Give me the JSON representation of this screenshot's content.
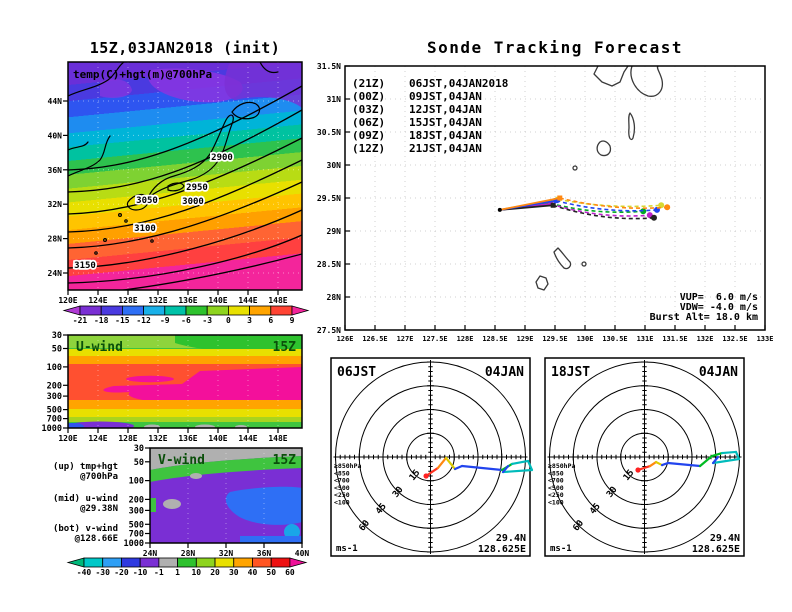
{
  "panels": {
    "map700": {
      "title": "15Z,03JAN2018 (init)",
      "field_label": "temp(C)+hgt(m)@700hPa",
      "y_ticks": [
        "44N",
        "40N",
        "36N",
        "32N",
        "28N",
        "24N"
      ],
      "x_ticks": [
        "120E",
        "124E",
        "128E",
        "132E",
        "136E",
        "140E",
        "144E",
        "148E"
      ],
      "contour_labels": [
        "2900",
        "2950",
        "3000",
        "3050",
        "3100",
        "3150"
      ],
      "colorbar_labels": [
        "-21",
        "-18",
        "-15",
        "-12",
        "-9",
        "-6",
        "-3",
        "0",
        "3",
        "6",
        "9"
      ],
      "colorbar_colors": [
        "#b03ad4",
        "#7a2fd4",
        "#4a3ae0",
        "#2e6ff5",
        "#19b0e8",
        "#00c2a8",
        "#2ec22e",
        "#8ed41e",
        "#e8e000",
        "#ffa400",
        "#ff4433",
        "#f3259b"
      ]
    },
    "uwind": {
      "label": "U-wind",
      "time": "15Z",
      "y_ticks": [
        "30",
        "50",
        "100",
        "200",
        "300",
        "500",
        "700",
        "1000"
      ],
      "x_ticks": [
        "120E",
        "124E",
        "128E",
        "132E",
        "136E",
        "140E",
        "144E",
        "148E"
      ]
    },
    "vwind": {
      "label": "V-wind",
      "time": "15Z",
      "y_ticks": [
        "30",
        "50",
        "100",
        "200",
        "300",
        "500",
        "700",
        "1000"
      ],
      "x_ticks": [
        "24N",
        "28N",
        "32N",
        "36N",
        "40N"
      ]
    },
    "annotation": {
      "up1": "(up) tmp+hgt",
      "up2": "@700hPa",
      "mid1": "(mid) u-wind",
      "mid2": "@29.38N",
      "bot1": "(bot) v-wind",
      "bot2": "@128.66E"
    },
    "wind_colorbar": {
      "labels": [
        "-40",
        "-30",
        "-20",
        "-10",
        "-1",
        "1",
        "10",
        "20",
        "30",
        "40",
        "50",
        "60"
      ],
      "colors": [
        "#00b87a",
        "#00c8c8",
        "#2e9ff5",
        "#2e3ae0",
        "#7a2fd4",
        "#b0b0b0",
        "#2ec22e",
        "#8ed41e",
        "#e8e000",
        "#ffa400",
        "#ff5522",
        "#ee1111",
        "#ee1199"
      ]
    },
    "tracking": {
      "title": "Sonde Tracking Forecast",
      "y_ticks": [
        "31.5N",
        "31N",
        "30.5N",
        "30N",
        "29.5N",
        "29N",
        "28.5N",
        "28N",
        "27.5N"
      ],
      "x_ticks": [
        "126E",
        "126.5E",
        "127E",
        "127.5E",
        "128E",
        "128.5E",
        "129E",
        "129.5E",
        "130E",
        "130.5E",
        "131E",
        "131.5E",
        "132E",
        "132.5E",
        "133E"
      ],
      "legend": [
        {
          "utc": "(21Z)",
          "jst": "06JST,04JAN2018",
          "color": "#222222"
        },
        {
          "utc": "(00Z)",
          "jst": "09JST,04JAN",
          "color": "#bb22cc"
        },
        {
          "utc": "(03Z)",
          "jst": "12JST,04JAN",
          "color": "#2244ee"
        },
        {
          "utc": "(06Z)",
          "jst": "15JST,04JAN",
          "color": "#00aa22"
        },
        {
          "utc": "(09Z)",
          "jst": "18JST,04JAN",
          "color": "#d8d832"
        },
        {
          "utc": "(12Z)",
          "jst": "21JST,04JAN",
          "color": "#ff8811"
        }
      ],
      "vup": "VUP=  6.0 m/s",
      "vdw": "VDW= -4.0 m/s",
      "burst": "Burst Alt= 18.0 km"
    },
    "hodographs": [
      {
        "time_label": "06JST",
        "date_label": "04JAN",
        "unit": "ms-1",
        "lat": "29.4N",
        "lon": "128.625E",
        "ring_labels": [
          "15",
          "30",
          "45",
          "60"
        ],
        "legend": [
          {
            "label": "≥850hPa",
            "color": "#ff2222"
          },
          {
            "label": "<850",
            "color": "#ff8811"
          },
          {
            "label": "<700",
            "color": "#ddcc00"
          },
          {
            "label": "<500",
            "color": "#00bb22"
          },
          {
            "label": "<250",
            "color": "#00bbbb"
          },
          {
            "label": "<100",
            "color": "#2244ee"
          }
        ]
      },
      {
        "time_label": "18JST",
        "date_label": "04JAN",
        "unit": "ms-1",
        "lat": "29.4N",
        "lon": "128.625E",
        "ring_labels": [
          "15",
          "30",
          "45",
          "60"
        ],
        "legend": [
          {
            "label": "≥850hPa",
            "color": "#ff2222"
          },
          {
            "label": "<850",
            "color": "#ff8811"
          },
          {
            "label": "<700",
            "color": "#ddcc00"
          },
          {
            "label": "<500",
            "color": "#00bb22"
          },
          {
            "label": "<250",
            "color": "#00bbbb"
          },
          {
            "label": "<100",
            "color": "#2244ee"
          }
        ]
      }
    ]
  },
  "chart_data": [
    {
      "type": "heatmap",
      "panel": "temp-height-700hPa",
      "title": "15Z,03JAN2018 (init)",
      "field": "temp(C)+hgt(m)@700hPa",
      "x_ticks": [
        "120E",
        "124E",
        "128E",
        "132E",
        "136E",
        "140E",
        "144E",
        "148E"
      ],
      "y_ticks": [
        "44N",
        "40N",
        "36N",
        "32N",
        "28N",
        "24N"
      ],
      "temp_scale_c": [
        -21,
        -18,
        -15,
        -12,
        -9,
        -6,
        -3,
        0,
        3,
        6,
        9
      ],
      "height_contours_m": [
        2900,
        2950,
        3000,
        3050,
        3100,
        3150
      ],
      "pattern": "cold purple/blue air over 40-46N grading through cyan/green/yellow/orange to warm red/pink south of 26N; height contours slope from 3150 at southwest up to 2900 northeast"
    },
    {
      "type": "heatmap",
      "panel": "u-wind-section",
      "time": "15Z",
      "x_ticks": [
        "120E",
        "124E",
        "128E",
        "132E",
        "136E",
        "140E",
        "144E",
        "148E"
      ],
      "pressure_levels_hpa": [
        30,
        50,
        100,
        200,
        300,
        500,
        700,
        1000
      ],
      "wind_scale_ms": [
        -40,
        -30,
        -20,
        -10,
        -1,
        1,
        10,
        20,
        30,
        40,
        50,
        60
      ],
      "pattern": "green 1-10 m/s aloft, westerly jet >50 m/s (magenta) near 150-300 hPa strongest east of 132E, yellow/orange 20-40 m/s mid-levels, weak purple/blue easterlies near surface west end"
    },
    {
      "type": "heatmap",
      "panel": "v-wind-section",
      "time": "15Z",
      "x_ticks": [
        "24N",
        "28N",
        "32N",
        "36N",
        "40N"
      ],
      "pressure_levels_hpa": [
        30,
        50,
        100,
        200,
        300,
        500,
        700,
        1000
      ],
      "wind_scale_ms": [
        -40,
        -30,
        -20,
        -10,
        -1,
        1,
        10,
        20,
        30,
        40,
        50,
        60
      ],
      "pattern": "gray near-zero band at top, green 1-10 m/s near 50-100 hPa, purple -10..-1 m/s northerly over most of section with blue -20..-10 patches north of 34N"
    },
    {
      "type": "line",
      "panel": "sonde-tracking",
      "title": "Sonde Tracking Forecast",
      "x_range_deg_e": [
        126,
        133
      ],
      "y_range_deg_n": [
        27.5,
        31.5
      ],
      "vup_ms": 6.0,
      "vdw_ms": -4.0,
      "burst_alt_km": 18.0,
      "series": [
        {
          "name": "(21Z) 06JST,04JAN2018",
          "color": "#222222",
          "launch": [
            128.58,
            29.32
          ],
          "burst": [
            129.47,
            29.39
          ],
          "landing": [
            131.15,
            29.2
          ]
        },
        {
          "name": "(00Z) 09JST,04JAN",
          "color": "#bb22cc",
          "launch": [
            128.58,
            29.32
          ],
          "burst": [
            129.43,
            29.41
          ],
          "landing": [
            131.08,
            29.24
          ]
        },
        {
          "name": "(03Z) 12JST,04JAN",
          "color": "#2244ee",
          "launch": [
            128.58,
            29.32
          ],
          "burst": [
            129.52,
            29.46
          ],
          "landing": [
            131.2,
            29.32
          ]
        },
        {
          "name": "(06Z) 15JST,04JAN",
          "color": "#00aa22",
          "launch": [
            128.58,
            29.32
          ],
          "burst": [
            129.42,
            29.42
          ],
          "landing": [
            130.97,
            29.3
          ]
        },
        {
          "name": "(09Z) 18JST,04JAN",
          "color": "#d8d832",
          "launch": [
            128.58,
            29.32
          ],
          "burst": [
            129.55,
            29.48
          ],
          "landing": [
            131.27,
            29.39
          ]
        },
        {
          "name": "(12Z) 21JST,04JAN",
          "color": "#ff8811",
          "launch": [
            128.58,
            29.32
          ],
          "burst": [
            129.58,
            29.5
          ],
          "landing": [
            131.37,
            29.36
          ]
        }
      ]
    },
    {
      "type": "line",
      "panel": "hodograph-06JST-04JAN",
      "location": [
        29.4,
        128.625
      ],
      "rings_ms": [
        15,
        30,
        45,
        60
      ],
      "unit": "ms-1",
      "trace_uv_ms": [
        [
          -2.8,
          -12.0
        ],
        [
          4.7,
          -6.9
        ],
        [
          9.8,
          -0.6
        ],
        [
          15.5,
          -7.6
        ],
        [
          19.9,
          -5.7
        ],
        [
          45.2,
          -8.2
        ],
        [
          51.5,
          -4.4
        ],
        [
          61.6,
          -2.5
        ],
        [
          64.1,
          -8.2
        ],
        [
          45.8,
          -9.5
        ],
        [
          49.0,
          -5.7
        ]
      ],
      "segment_colors": [
        "#ff3322",
        "#ff8811",
        "#ddcc00",
        "#2244ee",
        "#2244ee",
        "#00bb22",
        "#00bbbb",
        "#00bbbb",
        "#00bbbb",
        "#2244ee"
      ]
    },
    {
      "type": "line",
      "panel": "hodograph-18JST-04JAN",
      "location": [
        29.4,
        128.625
      ],
      "rings_ms": [
        15,
        30,
        45,
        60
      ],
      "unit": "ms-1",
      "trace_uv_ms": [
        [
          -4.1,
          -8.2
        ],
        [
          3.5,
          -5.7
        ],
        [
          7.3,
          -3.2
        ],
        [
          11.1,
          -5.1
        ],
        [
          14.8,
          -3.8
        ],
        [
          35.1,
          -5.7
        ],
        [
          42.6,
          0.6
        ],
        [
          49.0,
          2.5
        ],
        [
          57.8,
          3.2
        ],
        [
          59.7,
          -1.3
        ],
        [
          43.3,
          -3.8
        ],
        [
          46.4,
          0.0
        ]
      ],
      "segment_colors": [
        "#ff3322",
        "#ff8811",
        "#ddcc00",
        "#2244ee",
        "#2244ee",
        "#00bb22",
        "#00bb22",
        "#00bbbb",
        "#00bbbb",
        "#00bbbb",
        "#2244ee"
      ]
    }
  ]
}
